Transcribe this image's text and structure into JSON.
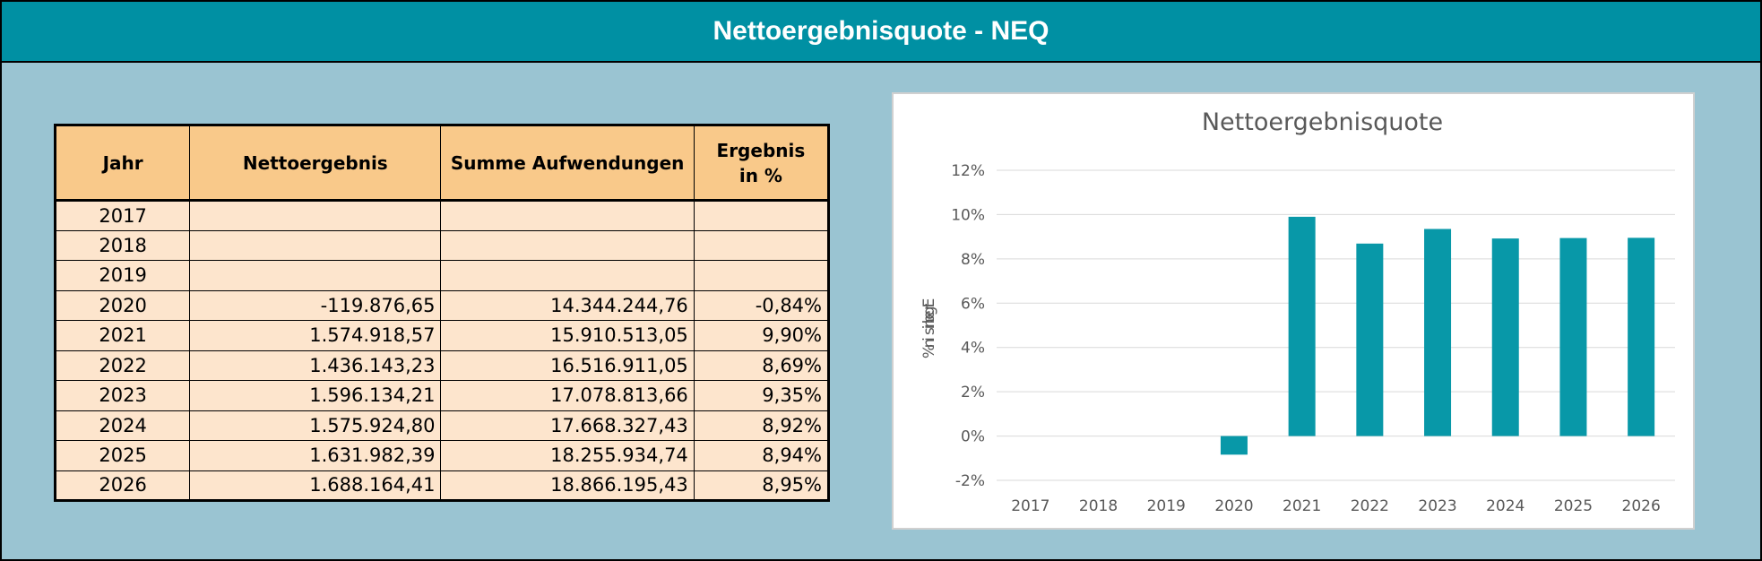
{
  "header": {
    "title": "Nettoergebnisquote - NEQ"
  },
  "table": {
    "columns": [
      "Jahr",
      "Nettoergebnis",
      "Summe Aufwendungen",
      "Ergebnis in %"
    ],
    "rows": [
      [
        "2017",
        "",
        "",
        ""
      ],
      [
        "2018",
        "",
        "",
        ""
      ],
      [
        "2019",
        "",
        "",
        ""
      ],
      [
        "2020",
        "-119.876,65",
        "14.344.244,76",
        "-0,84%"
      ],
      [
        "2021",
        "1.574.918,57",
        "15.910.513,05",
        "9,90%"
      ],
      [
        "2022",
        "1.436.143,23",
        "16.516.911,05",
        "8,69%"
      ],
      [
        "2023",
        "1.596.134,21",
        "17.078.813,66",
        "9,35%"
      ],
      [
        "2024",
        "1.575.924,80",
        "17.668.327,43",
        "8,92%"
      ],
      [
        "2025",
        "1.631.982,39",
        "18.255.934,74",
        "8,94%"
      ],
      [
        "2026",
        "1.688.164,41",
        "18.866.195,43",
        "8,95%"
      ]
    ]
  },
  "colors": {
    "header": "#0090a3",
    "background": "#9ac4d2",
    "table_header": "#f9c98a",
    "table_cell": "#fde5cd",
    "bar": "#0898a8"
  },
  "chart_data": {
    "type": "bar",
    "title": "Nettoergebnisquote",
    "ylabel": "Ergebnis in %",
    "categories": [
      "2017",
      "2018",
      "2019",
      "2020",
      "2021",
      "2022",
      "2023",
      "2024",
      "2025",
      "2026"
    ],
    "values": [
      null,
      null,
      null,
      -0.84,
      9.9,
      8.69,
      9.35,
      8.92,
      8.94,
      8.95
    ],
    "ylim": [
      -2,
      12
    ],
    "yticks": [
      "-2%",
      "0%",
      "2%",
      "4%",
      "6%",
      "8%",
      "10%",
      "12%"
    ],
    "grid": true,
    "legend": "none"
  }
}
